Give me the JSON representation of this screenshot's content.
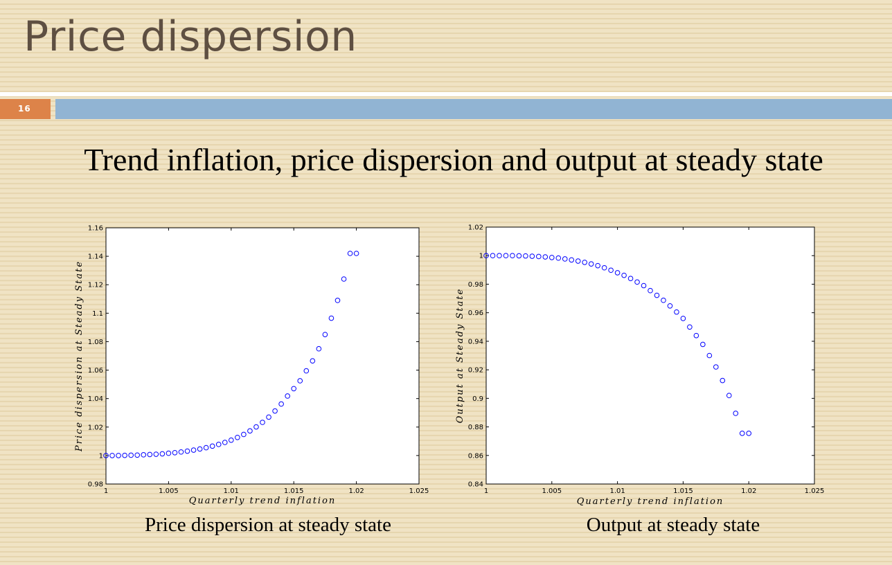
{
  "slide": {
    "title": "Price dispersion",
    "number": "16",
    "subtitle": "Trend inflation, price dispersion and output at steady state",
    "accent_orange": "#dd8349",
    "accent_blue": "#91b4d3"
  },
  "captions": {
    "left": "Price dispersion at steady state",
    "right": "Output at steady state"
  },
  "chart_data": [
    {
      "type": "scatter",
      "title": "",
      "xlabel": "Quarterly trend inflation",
      "ylabel": "Price dispersion at Steady State",
      "xlim": [
        1,
        1.025
      ],
      "ylim": [
        0.98,
        1.16
      ],
      "xticks": [
        "1",
        "1.005",
        "1.01",
        "1.015",
        "1.02",
        "1.025"
      ],
      "yticks": [
        "0.98",
        "1",
        "1.02",
        "1.04",
        "1.06",
        "1.08",
        "1.1",
        "1.12",
        "1.14",
        "1.16"
      ],
      "marker_color": "#0000ff",
      "grid": false,
      "series": [
        {
          "x": [
            1.0,
            1.0005,
            1.001,
            1.0015,
            1.002,
            1.0025,
            1.003,
            1.0035,
            1.004,
            1.0045,
            1.005,
            1.0055,
            1.006,
            1.0065,
            1.007,
            1.0075,
            1.008,
            1.0085,
            1.009,
            1.0095,
            1.01,
            1.0105,
            1.011,
            1.0115,
            1.012,
            1.0125,
            1.013,
            1.0135,
            1.014,
            1.0145,
            1.015,
            1.0155,
            1.016,
            1.0165,
            1.017,
            1.0175,
            1.018,
            1.0185,
            1.019,
            1.0195,
            1.02
          ],
          "y": [
            1.0,
            1.0,
            1.0,
            1.0001,
            1.0002,
            1.0003,
            1.0005,
            1.0007,
            1.0009,
            1.0012,
            1.0016,
            1.002,
            1.0025,
            1.0031,
            1.0038,
            1.0046,
            1.0055,
            1.0066,
            1.0078,
            1.0092,
            1.0108,
            1.0127,
            1.0148,
            1.0173,
            1.0201,
            1.0233,
            1.027,
            1.0313,
            1.0362,
            1.0418,
            1.047,
            1.0525,
            1.0595,
            1.0665,
            1.075,
            1.085,
            1.0965,
            1.109,
            1.124,
            1.142,
            1.142
          ]
        }
      ]
    },
    {
      "type": "scatter",
      "title": "",
      "xlabel": "Quarterly trend inflation",
      "ylabel": "Output at Steady State",
      "xlim": [
        1,
        1.025
      ],
      "ylim": [
        0.84,
        1.02
      ],
      "xticks": [
        "1",
        "1.005",
        "1.01",
        "1.015",
        "1.02",
        "1.025"
      ],
      "yticks": [
        "0.84",
        "0.86",
        "0.88",
        "0.9",
        "0.92",
        "0.94",
        "0.96",
        "0.98",
        "1",
        "1.02"
      ],
      "marker_color": "#0000ff",
      "grid": false,
      "series": [
        {
          "x": [
            1.0,
            1.0005,
            1.001,
            1.0015,
            1.002,
            1.0025,
            1.003,
            1.0035,
            1.004,
            1.0045,
            1.005,
            1.0055,
            1.006,
            1.0065,
            1.007,
            1.0075,
            1.008,
            1.0085,
            1.009,
            1.0095,
            1.01,
            1.0105,
            1.011,
            1.0115,
            1.012,
            1.0125,
            1.013,
            1.0135,
            1.014,
            1.0145,
            1.015,
            1.0155,
            1.016,
            1.0165,
            1.017,
            1.0175,
            1.018,
            1.0185,
            1.019,
            1.0195,
            1.02
          ],
          "y": [
            1.0,
            1.0,
            1.0,
            1.0,
            1.0,
            0.9999,
            0.9998,
            0.9996,
            0.9994,
            0.9991,
            0.9987,
            0.9983,
            0.9977,
            0.997,
            0.9962,
            0.9953,
            0.9942,
            0.993,
            0.9915,
            0.9898,
            0.988,
            0.9862,
            0.984,
            0.9815,
            0.979,
            0.9755,
            0.9722,
            0.9687,
            0.9648,
            0.9605,
            0.956,
            0.95,
            0.944,
            0.9378,
            0.93,
            0.922,
            0.9125,
            0.902,
            0.8895,
            0.8755,
            0.8755
          ]
        }
      ]
    }
  ]
}
